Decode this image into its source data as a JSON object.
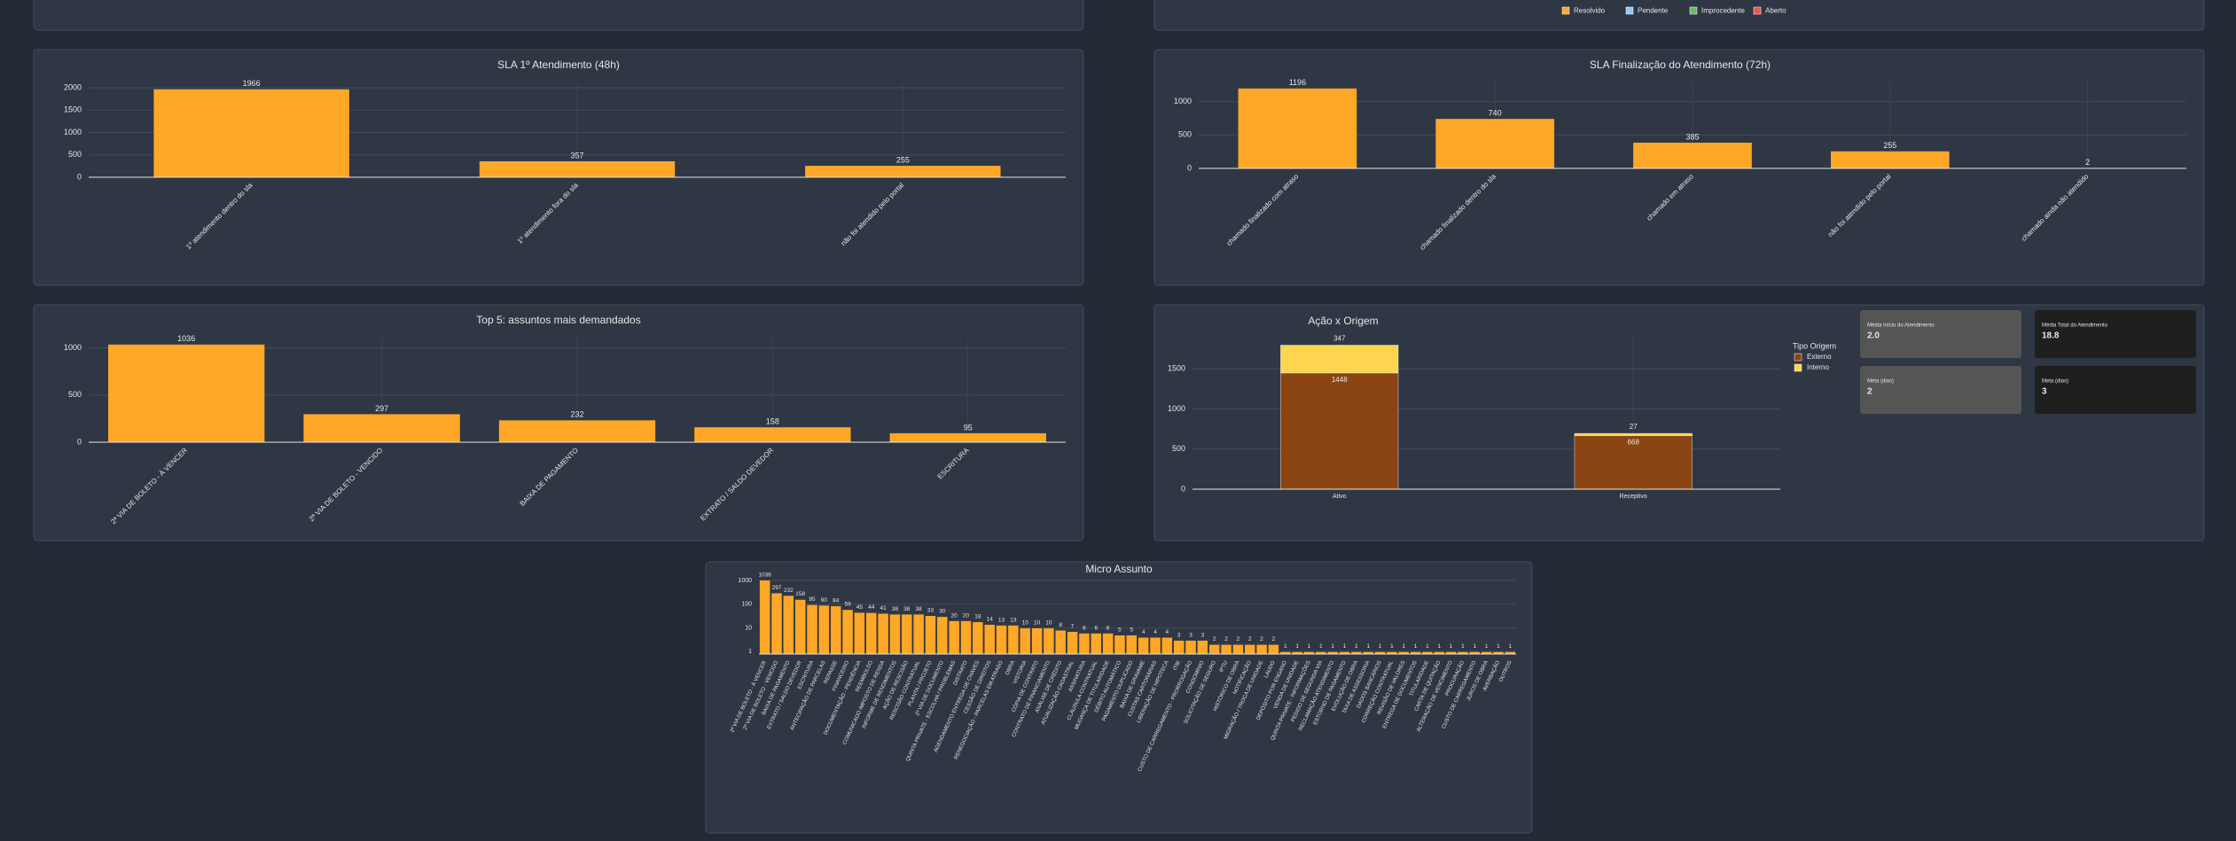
{
  "status_legend": [
    {
      "name": "Resolvido",
      "color": "#ffa726"
    },
    {
      "name": "Pendente",
      "color": "#90caf9"
    },
    {
      "name": "Improcedente",
      "color": "#66bb6a"
    },
    {
      "name": "Aberto",
      "color": "#ef5350"
    }
  ],
  "kpis": [
    {
      "label": "Média Início do Atendimento",
      "value": "2.0"
    },
    {
      "label": "Média Total do Atendimento",
      "value": "18.8"
    },
    {
      "label": "Meta (dias)",
      "value": "2"
    },
    {
      "label": "Meta (dias)",
      "value": "3"
    }
  ],
  "chart_data": [
    {
      "type": "bar",
      "title": "SLA 1º Atendimento (48h)",
      "categories": [
        "1º atendimento dentro do sla",
        "1º atendimento fora do sla",
        "não foi atendido pelo portal"
      ],
      "values": [
        1966,
        357,
        255
      ],
      "color": "#ffa726",
      "ylim": [
        0,
        2100
      ],
      "yticks": [
        0,
        500,
        1000,
        1500,
        2000
      ],
      "grid": true
    },
    {
      "type": "bar",
      "title": "SLA Finalização do Atendimento (72h)",
      "categories": [
        "chamado finalizado com atraso",
        "chamado finalizado dentro do sla",
        "chamado em atraso",
        "não foi atendido pelo portal",
        "chamado ainda não atendido"
      ],
      "values": [
        1196,
        740,
        385,
        255,
        2
      ],
      "color": "#ffa726",
      "ylim": [
        0,
        1300
      ],
      "yticks": [
        0,
        500,
        1000
      ],
      "grid": true
    },
    {
      "type": "bar",
      "title": "Top 5: assuntos mais demandados",
      "categories": [
        "2ª VIA DE BOLETO - À VENCER",
        "2ª VIA DE BOLETO - VENCIDO",
        "BAIXA DE PAGAMENTO",
        "EXTRATO / SALDO DEVEDOR",
        "ESCRITURA"
      ],
      "values": [
        1036,
        297,
        232,
        158,
        95
      ],
      "color": "#ffa726",
      "ylim": [
        0,
        1100
      ],
      "yticks": [
        0,
        500,
        1000
      ],
      "grid": true
    },
    {
      "type": "stacked_bar",
      "title": "Ação x Origem",
      "legend_title": "Tipo Origem",
      "categories": [
        "Ativo",
        "Receptivo"
      ],
      "series": [
        {
          "name": "Externo",
          "color": "#8b4513",
          "values": [
            1448,
            668
          ]
        },
        {
          "name": "Interno",
          "color": "#ffd54f",
          "values": [
            347,
            27
          ]
        }
      ],
      "ylim": [
        0,
        1900
      ],
      "yticks": [
        0,
        500,
        1000,
        1500
      ],
      "grid": true
    },
    {
      "type": "bar",
      "title": "Micro Assunto",
      "log_scale": true,
      "color": "#ffa726",
      "grid": true,
      "ylim": [
        0.8,
        1300
      ],
      "yticks": [
        {
          "value": 1,
          "label": "1"
        },
        {
          "value": 10,
          "label": "10"
        },
        {
          "value": 100,
          "label": "100"
        },
        {
          "value": 1000,
          "label": "1000"
        }
      ],
      "categories": [
        "2ª VIA DE BOLETO - À VENCER",
        "2ª VIA DE BOLETO - VENCIDO",
        "BAIXA DE PAGAMENTO",
        "EXTRATO / SALDO DEVEDOR",
        "ESCRITURA",
        "ANTECIPAÇÃO DE PARCELAS",
        "REPASSE",
        "FINANCEIRO",
        "DOCUMENTAÇÃO - PENDÊNCIA",
        "REEMBOLSO",
        "COMUNICADO IMPOSTO DE RENDA",
        "INFORME DE RENDIMENTOS",
        "AÇÃO DE RESCISÃO",
        "RESCISÃO CONTRATUAL",
        "PLANTA / PROJETO",
        "2ª VIA DE DOCUMENTO",
        "QUINTA PRIVATE - ESCOLHA / PROBLEMAS",
        "DISTRATO",
        "AGENDAMENTO ENTREGA DE CHAVES",
        "CESSÃO DE DIREITOS",
        "RENEGOCIAÇÃO - PARCELAS EM ATRASO",
        "OBRA",
        "VISTORIA",
        "CÓPIA DE CONTRATO",
        "CONTRATO DE FINANCIAMENTO",
        "ANÁLISE DE CRÉDITO",
        "ATUALIZAÇÃO CADASTRAL",
        "ASSINATURA",
        "CLÁUSULA CONTRATUAL",
        "MUDANÇA DE TITULARIDADE",
        "DÉBITO AUTOMÁTICO",
        "PAGAMENTO DUPLICADO",
        "BAIXA DE GRAVAME",
        "CUSTAS CARTORÁRIAS",
        "LIBERAÇÃO DE HIPOTECA",
        "ITBI",
        "CUSTO DE CARREGAMENTO - PRORROGAÇÃO",
        "CONDOMÍNIO",
        "SOLICITAÇÃO DE SEGURO",
        "IPTU",
        "HISTÓRICO DE OBRA",
        "NOTIFICAÇÃO",
        "MIGRAÇÃO / TROCA DE UNIDADE",
        "LAUDO",
        "DEPÓSITO POR ENGANO",
        "VENDA DE UNIDADE",
        "QUINTA PRIVATE - INFORMAÇÕES",
        "PEDIDO DE SEGUNDA VIA",
        "RECLAMAÇÃO ATENDIMENTO",
        "ESTORNO DE PAGAMENTO",
        "EVOLUÇÃO DE OBRA",
        "TAXA DE ASSESSORIA",
        "DADOS BANCÁRIOS",
        "CORREÇÃO CONTRATUAL",
        "REVISÃO DE VALORES",
        "ENTREGA DE DOCUMENTOS",
        "TITULARIDADE",
        "CARTA DE QUITAÇÃO",
        "ALTERAÇÃO DE VENCIMENTO",
        "PROCURAÇÃO",
        "CUSTO DE CARREGAMENTO",
        "JUROS DE OBRA",
        "AVERBAÇÃO",
        "OUTROS"
      ],
      "values": [
        1036,
        297,
        232,
        158,
        95,
        90,
        84,
        59,
        45,
        44,
        41,
        38,
        38,
        38,
        33,
        30,
        20,
        20,
        18,
        14,
        13,
        13,
        10,
        10,
        10,
        8,
        7,
        6,
        6,
        6,
        5,
        5,
        4,
        4,
        4,
        3,
        3,
        3,
        2,
        2,
        2,
        2,
        2,
        2,
        1,
        1,
        1,
        1,
        1,
        1,
        1,
        1,
        1,
        1,
        1,
        1,
        1,
        1,
        1,
        1,
        1,
        1,
        1,
        1
      ]
    }
  ]
}
